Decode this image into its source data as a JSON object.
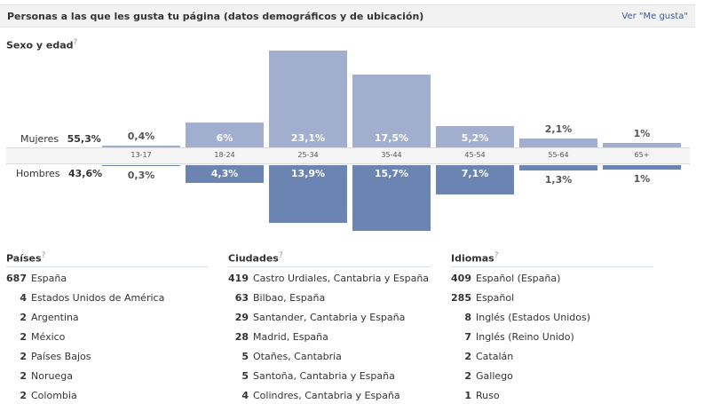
{
  "header": {
    "title": "Personas a las que les gusta tu página (datos demográficos y de ubicación)",
    "link": "Ver \"Me gusta\""
  },
  "demographics": {
    "title": "Sexo y edad",
    "help_mark": "?",
    "women_label": "Mujeres",
    "women_total": "55,3%",
    "men_label": "Hombres",
    "men_total": "43,6%"
  },
  "chart_data": {
    "type": "bar",
    "categories": [
      "13-17",
      "18-24",
      "25-34",
      "35-44",
      "45-54",
      "55-64",
      "65+"
    ],
    "series": [
      {
        "name": "Mujeres",
        "values": [
          0.4,
          6,
          23.1,
          17.5,
          5.2,
          2.1,
          1
        ],
        "labels": [
          "0,4%",
          "6%",
          "23,1%",
          "17,5%",
          "5,2%",
          "2,1%",
          "1%"
        ]
      },
      {
        "name": "Hombres",
        "values": [
          0.3,
          4.3,
          13.9,
          15.7,
          7.1,
          1.3,
          1
        ],
        "labels": [
          "0,3%",
          "4,3%",
          "13,9%",
          "15,7%",
          "7,1%",
          "1,3%",
          "1%"
        ]
      }
    ],
    "colors": {
      "women": "#a1aecd",
      "men": "#6c84b2"
    }
  },
  "countries": {
    "title": "Países",
    "help_mark": "?",
    "items": [
      {
        "count": "687",
        "label": "España"
      },
      {
        "count": "4",
        "label": "Estados Unidos de América"
      },
      {
        "count": "2",
        "label": "Argentina"
      },
      {
        "count": "2",
        "label": "México"
      },
      {
        "count": "2",
        "label": "Países Bajos"
      },
      {
        "count": "2",
        "label": "Noruega"
      },
      {
        "count": "2",
        "label": "Colombia"
      }
    ]
  },
  "cities": {
    "title": "Ciudades",
    "help_mark": "?",
    "items": [
      {
        "count": "419",
        "label": "Castro Urdiales, Cantabria y España"
      },
      {
        "count": "63",
        "label": "Bilbao, España"
      },
      {
        "count": "29",
        "label": "Santander, Cantabria y España"
      },
      {
        "count": "28",
        "label": "Madrid, España"
      },
      {
        "count": "5",
        "label": "Otañes, Cantabria"
      },
      {
        "count": "5",
        "label": "Santoña, Cantabria y España"
      },
      {
        "count": "4",
        "label": "Colindres, Cantabria y España"
      }
    ]
  },
  "languages": {
    "title": "Idiomas",
    "help_mark": "?",
    "items": [
      {
        "count": "409",
        "label": "Español (España)"
      },
      {
        "count": "285",
        "label": "Español"
      },
      {
        "count": "8",
        "label": "Inglés (Estados Unidos)"
      },
      {
        "count": "7",
        "label": "Inglés (Reino Unido)"
      },
      {
        "count": "2",
        "label": "Catalán"
      },
      {
        "count": "2",
        "label": "Gallego"
      },
      {
        "count": "1",
        "label": "Ruso"
      }
    ]
  }
}
